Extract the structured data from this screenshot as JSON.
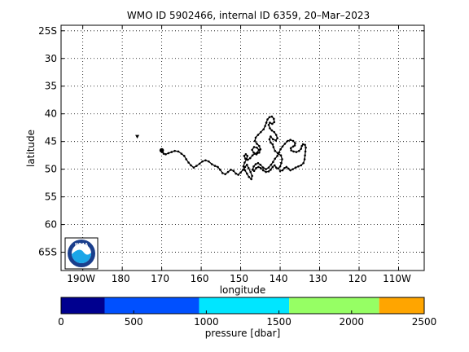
{
  "chart_data": {
    "type": "scatter",
    "title": "WMO ID 5902466, internal ID 6359, 20–Mar–2023",
    "xlabel": "longitude",
    "ylabel": "latitude",
    "x_ticks": [
      {
        "value": -170,
        "label": "190W"
      },
      {
        "value": 180,
        "label": "180"
      },
      {
        "value": 170,
        "label": "170"
      },
      {
        "value": 160,
        "label": "160"
      },
      {
        "value": 150,
        "label": "150"
      },
      {
        "value": 140,
        "label": "140"
      },
      {
        "value": 130,
        "label": "130"
      },
      {
        "value": 120,
        "label": "120"
      },
      {
        "value": 110,
        "label": "110W"
      }
    ],
    "y_ticks": [
      {
        "value": -25,
        "label": "25S"
      },
      {
        "value": -30,
        "label": "30"
      },
      {
        "value": -35,
        "label": "35"
      },
      {
        "value": -40,
        "label": "40"
      },
      {
        "value": -45,
        "label": "45"
      },
      {
        "value": -50,
        "label": "50"
      },
      {
        "value": -55,
        "label": "55"
      },
      {
        "value": -60,
        "label": "60"
      },
      {
        "value": -65,
        "label": "65S"
      }
    ],
    "xlim": [
      -164.5,
      103.5
    ],
    "ylim": [
      -24.0,
      -68.3
    ],
    "grid": true,
    "start_marker": {
      "lon": 176.2,
      "lat": -44.1
    },
    "track": [
      [
        170.0,
        -46.6
      ],
      [
        169.8,
        -46.9
      ],
      [
        169.5,
        -47.2
      ],
      [
        169.0,
        -47.3
      ],
      [
        168.3,
        -47.1
      ],
      [
        167.5,
        -46.9
      ],
      [
        166.7,
        -46.7
      ],
      [
        165.8,
        -46.8
      ],
      [
        165.0,
        -47.2
      ],
      [
        164.3,
        -47.6
      ],
      [
        163.8,
        -48.2
      ],
      [
        163.2,
        -48.8
      ],
      [
        162.6,
        -49.3
      ],
      [
        161.9,
        -49.7
      ],
      [
        161.2,
        -49.4
      ],
      [
        160.4,
        -49.0
      ],
      [
        159.7,
        -48.6
      ],
      [
        158.9,
        -48.4
      ],
      [
        158.1,
        -48.6
      ],
      [
        157.3,
        -49.1
      ],
      [
        156.5,
        -49.4
      ],
      [
        155.8,
        -49.6
      ],
      [
        155.2,
        -50.1
      ],
      [
        154.6,
        -50.7
      ],
      [
        153.9,
        -50.9
      ],
      [
        153.2,
        -50.5
      ],
      [
        152.5,
        -50.1
      ],
      [
        151.8,
        -50.3
      ],
      [
        151.2,
        -50.8
      ],
      [
        150.6,
        -51.0
      ],
      [
        150.0,
        -50.6
      ],
      [
        149.4,
        -50.1
      ],
      [
        148.9,
        -49.6
      ],
      [
        148.4,
        -49.2
      ],
      [
        148.0,
        -49.8
      ],
      [
        147.5,
        -50.5
      ],
      [
        147.1,
        -51.2
      ],
      [
        147.3,
        -51.8
      ],
      [
        147.9,
        -51.4
      ],
      [
        148.4,
        -50.8
      ],
      [
        148.9,
        -50.2
      ],
      [
        149.3,
        -49.5
      ],
      [
        149.0,
        -48.8
      ],
      [
        148.5,
        -48.2
      ],
      [
        148.3,
        -47.6
      ],
      [
        148.7,
        -47.3
      ],
      [
        149.1,
        -47.6
      ],
      [
        148.8,
        -48.1
      ],
      [
        148.2,
        -48.3
      ],
      [
        147.6,
        -48.0
      ],
      [
        147.0,
        -47.5
      ],
      [
        146.4,
        -47.2
      ],
      [
        145.8,
        -47.0
      ],
      [
        145.4,
        -46.5
      ],
      [
        145.9,
        -46.1
      ],
      [
        146.6,
        -46.0
      ],
      [
        147.1,
        -46.5
      ],
      [
        146.7,
        -47.0
      ],
      [
        146.0,
        -47.3
      ],
      [
        145.3,
        -47.0
      ],
      [
        145.0,
        -46.4
      ],
      [
        145.3,
        -45.8
      ],
      [
        145.9,
        -45.4
      ],
      [
        146.4,
        -44.9
      ],
      [
        146.2,
        -44.3
      ],
      [
        145.6,
        -43.8
      ],
      [
        144.9,
        -43.3
      ],
      [
        144.2,
        -42.8
      ],
      [
        143.8,
        -42.2
      ],
      [
        143.5,
        -41.6
      ],
      [
        143.2,
        -41.0
      ],
      [
        142.7,
        -40.6
      ],
      [
        142.1,
        -40.5
      ],
      [
        141.6,
        -40.9
      ],
      [
        141.5,
        -41.5
      ],
      [
        142.0,
        -41.8
      ],
      [
        142.6,
        -41.6
      ],
      [
        142.9,
        -42.0
      ],
      [
        142.6,
        -42.6
      ],
      [
        142.1,
        -43.0
      ],
      [
        141.5,
        -43.3
      ],
      [
        141.0,
        -43.8
      ],
      [
        140.7,
        -44.4
      ],
      [
        141.1,
        -44.8
      ],
      [
        141.8,
        -44.6
      ],
      [
        142.4,
        -44.1
      ],
      [
        142.7,
        -44.6
      ],
      [
        142.4,
        -45.2
      ],
      [
        141.9,
        -45.5
      ],
      [
        141.7,
        -46.0
      ],
      [
        141.3,
        -46.7
      ],
      [
        140.6,
        -47.1
      ],
      [
        139.8,
        -47.5
      ],
      [
        139.5,
        -48.2
      ],
      [
        139.7,
        -48.9
      ],
      [
        140.0,
        -49.5
      ],
      [
        140.5,
        -49.9
      ],
      [
        141.0,
        -49.7
      ],
      [
        141.4,
        -49.3
      ],
      [
        141.9,
        -49.6
      ],
      [
        142.4,
        -50.1
      ],
      [
        142.9,
        -50.4
      ],
      [
        143.6,
        -50.5
      ],
      [
        144.3,
        -50.2
      ],
      [
        144.9,
        -49.8
      ],
      [
        145.5,
        -49.6
      ],
      [
        146.1,
        -49.8
      ],
      [
        146.6,
        -50.3
      ],
      [
        147.0,
        -50.1
      ],
      [
        146.7,
        -49.5
      ],
      [
        146.2,
        -49.1
      ],
      [
        145.6,
        -48.9
      ],
      [
        145.0,
        -49.2
      ],
      [
        144.3,
        -49.7
      ],
      [
        143.6,
        -50.0
      ],
      [
        142.9,
        -49.7
      ],
      [
        142.3,
        -49.2
      ],
      [
        141.8,
        -48.7
      ],
      [
        141.3,
        -48.1
      ],
      [
        140.7,
        -47.6
      ],
      [
        140.3,
        -47.0
      ],
      [
        139.9,
        -46.4
      ],
      [
        139.4,
        -45.9
      ],
      [
        138.8,
        -45.4
      ],
      [
        138.1,
        -44.9
      ],
      [
        137.4,
        -44.7
      ],
      [
        136.7,
        -44.9
      ],
      [
        136.2,
        -45.3
      ],
      [
        136.3,
        -45.7
      ],
      [
        136.7,
        -45.9
      ],
      [
        137.3,
        -46.2
      ],
      [
        137.2,
        -46.6
      ],
      [
        136.6,
        -46.8
      ],
      [
        135.9,
        -46.9
      ],
      [
        135.2,
        -46.7
      ],
      [
        134.7,
        -46.3
      ],
      [
        134.5,
        -45.8
      ],
      [
        134.2,
        -45.5
      ],
      [
        133.7,
        -45.6
      ],
      [
        133.5,
        -46.1
      ],
      [
        133.6,
        -46.8
      ],
      [
        133.7,
        -47.5
      ],
      [
        133.8,
        -48.2
      ],
      [
        134.1,
        -48.9
      ],
      [
        134.7,
        -49.3
      ],
      [
        135.4,
        -49.5
      ],
      [
        136.1,
        -49.7
      ],
      [
        136.8,
        -50.0
      ],
      [
        137.4,
        -50.2
      ],
      [
        137.9,
        -49.9
      ],
      [
        138.4,
        -49.6
      ],
      [
        138.9,
        -49.8
      ],
      [
        139.4,
        -50.2
      ],
      [
        140.0,
        -50.3
      ]
    ],
    "legend": {
      "label": "pressure [dbar]",
      "ticks": [
        "0",
        "500",
        "1000",
        "1500",
        "2000",
        "2500"
      ],
      "range": [
        0,
        2500
      ],
      "bins": [
        {
          "from": 0,
          "to": 300,
          "color": "#00008f"
        },
        {
          "from": 300,
          "to": 950,
          "color": "#0050ff"
        },
        {
          "from": 950,
          "to": 1570,
          "color": "#00e6ff"
        },
        {
          "from": 1570,
          "to": 2190,
          "color": "#96ff64"
        },
        {
          "from": 2190,
          "to": 2500,
          "color": "#ffa500"
        }
      ]
    },
    "logo": {
      "text": "NOAA",
      "ring_color": "#1a3e8c",
      "sea_color": "#1aa6e8"
    }
  }
}
